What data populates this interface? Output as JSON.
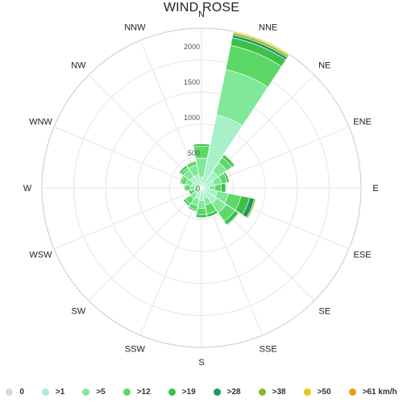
{
  "chart_data": {
    "type": "polar-stacked-bar",
    "title": "WIND ROSE",
    "directions": [
      "N",
      "NNE",
      "NE",
      "ENE",
      "E",
      "ESE",
      "SE",
      "SSE",
      "S",
      "SSW",
      "SW",
      "WSW",
      "W",
      "WNW",
      "NW",
      "NNW"
    ],
    "radial_ticks": [
      0,
      500,
      1000,
      1500,
      2000
    ],
    "radial_max": 2250,
    "grid": true,
    "legend_position": "bottom",
    "series": [
      {
        "name": "0",
        "color": "#d8d8d8",
        "values": [
          0,
          0,
          0,
          0,
          0,
          0,
          0,
          0,
          0,
          0,
          0,
          0,
          0,
          0,
          0,
          0
        ]
      },
      {
        "name": ">1",
        "color": "#a8f0c8",
        "values": [
          150,
          1050,
          280,
          180,
          110,
          230,
          260,
          150,
          180,
          160,
          100,
          60,
          100,
          140,
          190,
          190
        ]
      },
      {
        "name": ">5",
        "color": "#80e898",
        "values": [
          270,
          650,
          150,
          110,
          80,
          160,
          160,
          100,
          110,
          100,
          90,
          50,
          60,
          90,
          120,
          140
        ]
      },
      {
        "name": ">12",
        "color": "#5cd868",
        "values": [
          170,
          350,
          90,
          80,
          90,
          180,
          150,
          130,
          90,
          60,
          90,
          40,
          60,
          60,
          40,
          50
        ]
      },
      {
        "name": ">19",
        "color": "#3cc048",
        "values": [
          30,
          110,
          40,
          30,
          60,
          120,
          60,
          40,
          40,
          20,
          30,
          30,
          20,
          20,
          30,
          10
        ]
      },
      {
        "name": ">28",
        "color": "#1f9a5c",
        "values": [
          0,
          40,
          10,
          0,
          10,
          70,
          10,
          0,
          0,
          0,
          0,
          0,
          0,
          0,
          0,
          0
        ]
      },
      {
        "name": ">38",
        "color": "#8ab82a",
        "values": [
          0,
          30,
          0,
          0,
          0,
          20,
          0,
          0,
          0,
          0,
          0,
          0,
          0,
          0,
          0,
          0
        ]
      },
      {
        "name": ">50",
        "color": "#e4c81c",
        "values": [
          0,
          20,
          0,
          0,
          0,
          10,
          0,
          0,
          0,
          0,
          0,
          0,
          0,
          0,
          0,
          0
        ]
      },
      {
        "name": ">61 km/h",
        "color": "#ee9a1c",
        "values": [
          0,
          10,
          0,
          0,
          0,
          0,
          0,
          0,
          0,
          0,
          0,
          0,
          0,
          0,
          0,
          0
        ]
      }
    ]
  }
}
